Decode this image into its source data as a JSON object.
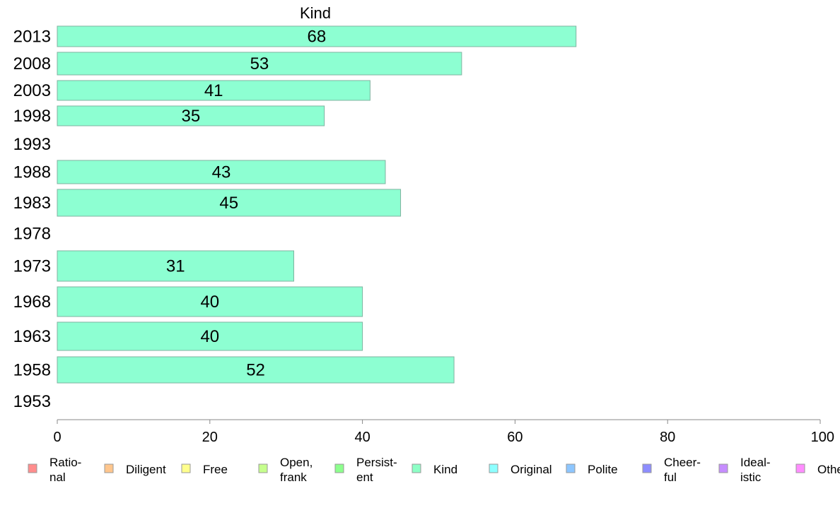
{
  "chart_data": {
    "type": "bar",
    "orientation": "horizontal",
    "title": "Kind",
    "categories": [
      "2013",
      "2008",
      "2003",
      "1998",
      "1993",
      "1988",
      "1983",
      "1978",
      "1973",
      "1968",
      "1963",
      "1958",
      "1953"
    ],
    "values": [
      68,
      53,
      41,
      35,
      null,
      43,
      45,
      null,
      31,
      40,
      40,
      52,
      null
    ],
    "value_labels": [
      "68",
      "53",
      "41",
      "35",
      "",
      "43",
      "45",
      "",
      "31",
      "40",
      "40",
      "52",
      ""
    ],
    "bar_color": "#8dffd2",
    "xlim": [
      0,
      100
    ],
    "xticks": [
      "0",
      "20",
      "40",
      "60",
      "80",
      "100"
    ],
    "xlabel": "",
    "ylabel": "",
    "grid": false,
    "legend_position": "bottom",
    "legend": [
      {
        "lines": [
          "Ratio-",
          "nal"
        ],
        "color": "#ff8d8d"
      },
      {
        "lines": [
          "Diligent"
        ],
        "color": "#ffc68d"
      },
      {
        "lines": [
          "Free"
        ],
        "color": "#ffff8d"
      },
      {
        "lines": [
          "Open,",
          "frank"
        ],
        "color": "#c6ff8d"
      },
      {
        "lines": [
          "Persist-",
          "ent"
        ],
        "color": "#8dff8d"
      },
      {
        "lines": [
          "Kind"
        ],
        "color": "#8dffc6"
      },
      {
        "lines": [
          "Original"
        ],
        "color": "#8dffff"
      },
      {
        "lines": [
          "Polite"
        ],
        "color": "#8dc6ff"
      },
      {
        "lines": [
          "Cheer-",
          "ful"
        ],
        "color": "#8d8dff"
      },
      {
        "lines": [
          "Ideal-",
          "istic"
        ],
        "color": "#c68dff"
      },
      {
        "lines": [
          "Other"
        ],
        "color": "#ff8dff"
      }
    ]
  }
}
